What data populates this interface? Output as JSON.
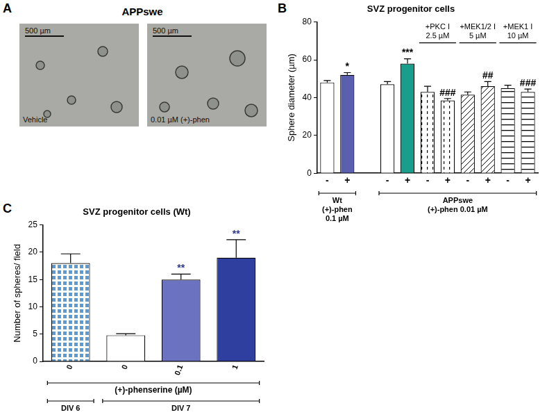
{
  "panel_a": {
    "letter": "A",
    "title": "APPswe",
    "images": [
      {
        "scale_bar": "500 µm",
        "label": "Vehicle"
      },
      {
        "scale_bar": "500 µm",
        "label": "0.01 µM (+)-phen"
      }
    ]
  },
  "chart_data": [
    {
      "panel": "B",
      "type": "bar",
      "title": "SVZ progenitor cells",
      "y_label": "Sphere diameter (µm)",
      "categories": [
        "-",
        "+",
        null,
        "-",
        "+",
        "-",
        "+",
        "-",
        "+",
        "-",
        "+"
      ],
      "values": [
        48,
        52,
        null,
        47,
        58,
        43,
        38.5,
        41.5,
        46,
        45,
        43
      ],
      "errors": [
        1,
        1.2,
        null,
        1.5,
        2.5,
        3,
        1,
        1.5,
        2.5,
        1.5,
        1.5
      ],
      "colors": [
        "#ffffff",
        "#5b5fb0",
        null,
        "#ffffff",
        "#1a9e8c",
        "#ffffff",
        "#ffffff",
        "#ffffff",
        "#ffffff",
        "#ffffff",
        "#ffffff"
      ],
      "significance": [
        null,
        "*",
        null,
        null,
        "***",
        null,
        "###",
        null,
        "##",
        null,
        "###"
      ],
      "top_groups": [
        {
          "lines": [
            "+PKC I",
            "2.5 µM"
          ],
          "span": [
            5,
            6
          ]
        },
        {
          "lines": [
            "+MEK1/2 I",
            "5 µM"
          ],
          "span": [
            7,
            8
          ]
        },
        {
          "lines": [
            "+MEK1 I",
            "10 µM"
          ],
          "span": [
            9,
            10
          ]
        }
      ],
      "bottom_groups": [
        {
          "lines": [
            "Wt",
            "(+)-phen",
            "0.1 µM"
          ],
          "span": [
            0,
            1
          ]
        },
        {
          "lines": [
            "APPswe",
            "(+)-phen 0.01 µM"
          ],
          "span": [
            3,
            10
          ]
        }
      ],
      "ylim": [
        0,
        80
      ],
      "yticks": [
        0,
        20,
        40,
        60,
        80
      ],
      "grid": false
    },
    {
      "panel": "C",
      "type": "bar",
      "title": "SVZ progenitor cells (Wt)",
      "y_label": "Number of spheres/ field",
      "x_label": "(+)-phenserine (µM)",
      "categories": [
        "0",
        "0",
        "0.1",
        "1"
      ],
      "values": [
        18,
        4.8,
        15,
        19
      ],
      "errors": [
        1.7,
        0.3,
        1,
        3.3
      ],
      "colors": [
        "#5b9bd5",
        "#ffffff",
        "#6b72bf",
        "#2f3f9f"
      ],
      "significance": [
        null,
        null,
        "**",
        "**"
      ],
      "bottom_groups": [
        {
          "lines": [
            "DIV 6"
          ],
          "span": [
            0,
            0
          ]
        },
        {
          "lines": [
            "DIV 7"
          ],
          "span": [
            1,
            3
          ]
        }
      ],
      "ylim": [
        0,
        25
      ],
      "yticks": [
        0,
        5,
        10,
        15,
        20,
        25
      ],
      "grid": false
    }
  ]
}
